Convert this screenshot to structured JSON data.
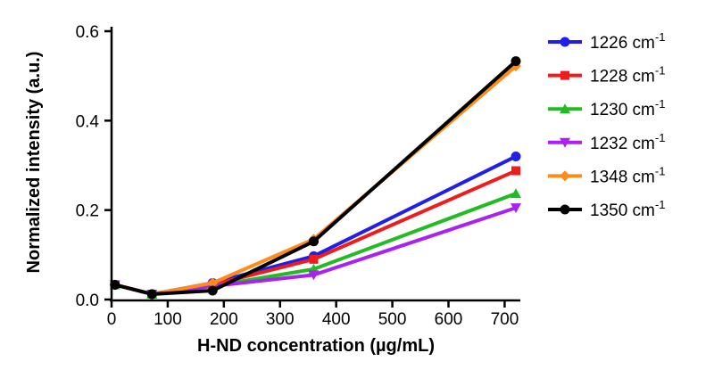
{
  "chart_data": {
    "type": "line",
    "title": "",
    "xlabel": "H-ND concentration (µg/mL)",
    "ylabel": "Normalized intensity (a.u.)",
    "xlim": [
      0,
      720
    ],
    "ylim": [
      0,
      0.6
    ],
    "x_ticks": [
      "0",
      "100",
      "200",
      "300",
      "400",
      "500",
      "600",
      "700"
    ],
    "y_ticks": [
      "0.0",
      "0.2",
      "0.4",
      "0.6"
    ],
    "grid": false,
    "legend_position": "right",
    "x": [
      6,
      72,
      180,
      360,
      720
    ],
    "series": [
      {
        "name": "1226 cm",
        "unit_exp": "-1",
        "color": "#1f1fe6",
        "marker": "circle",
        "values": [
          0.033,
          0.012,
          0.037,
          0.097,
          0.32
        ]
      },
      {
        "name": "1228 cm",
        "unit_exp": "-1",
        "color": "#ee1c1c",
        "marker": "square",
        "values": [
          0.033,
          0.012,
          0.033,
          0.09,
          0.288
        ]
      },
      {
        "name": "1230 cm",
        "unit_exp": "-1",
        "color": "#22bb22",
        "marker": "triangle-up",
        "values": [
          0.033,
          0.012,
          0.03,
          0.068,
          0.237
        ]
      },
      {
        "name": "1232 cm",
        "unit_exp": "-1",
        "color": "#aa22ee",
        "marker": "triangle-down",
        "values": [
          0.033,
          0.012,
          0.03,
          0.055,
          0.205
        ]
      },
      {
        "name": "1348 cm",
        "unit_exp": "-1",
        "color": "#ff8c1a",
        "marker": "diamond",
        "values": [
          0.033,
          0.012,
          0.037,
          0.135,
          0.522
        ]
      },
      {
        "name": "1350 cm",
        "unit_exp": "-1",
        "color": "#000000",
        "marker": "circle",
        "values": [
          0.033,
          0.012,
          0.02,
          0.13,
          0.533
        ]
      }
    ]
  }
}
